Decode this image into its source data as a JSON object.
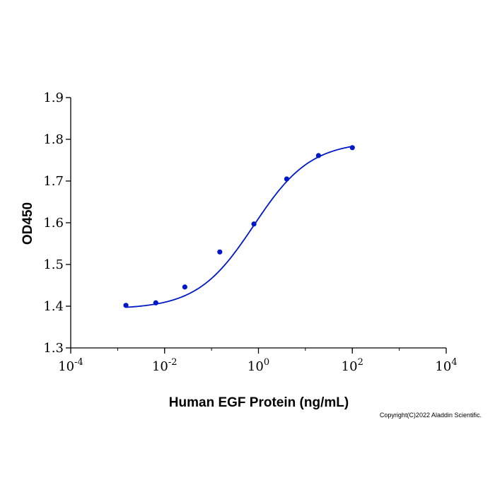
{
  "chart_data": {
    "type": "scatter",
    "title": "",
    "xlabel": "Human EGF Protein (ng/mL)",
    "ylabel": "OD450",
    "xscale": "log",
    "xlim": [
      0.0001,
      10000
    ],
    "ylim": [
      1.3,
      1.9
    ],
    "x_ticks": [
      {
        "base": "10",
        "exp": "-4",
        "value": 0.0001
      },
      {
        "base": "10",
        "exp": "-2",
        "value": 0.01
      },
      {
        "base": "10",
        "exp": "0",
        "value": 1
      },
      {
        "base": "10",
        "exp": "2",
        "value": 100
      },
      {
        "base": "10",
        "exp": "4",
        "value": 10000
      }
    ],
    "y_ticks": [
      "1.3",
      "1.4",
      "1.5",
      "1.6",
      "1.7",
      "1.8",
      "1.9"
    ],
    "grid": false,
    "series": [
      {
        "points": [
          {
            "x": 0.0015,
            "y": 1.402
          },
          {
            "x": 0.0065,
            "y": 1.408
          },
          {
            "x": 0.027,
            "y": 1.446
          },
          {
            "x": 0.15,
            "y": 1.53
          },
          {
            "x": 0.8,
            "y": 1.597
          },
          {
            "x": 4.0,
            "y": 1.705
          },
          {
            "x": 19.0,
            "y": 1.761
          },
          {
            "x": 100.0,
            "y": 1.78
          }
        ],
        "color": "#0018c8",
        "fit": {
          "model": "4PL",
          "bottom": 1.393,
          "top": 1.795,
          "ec50": 0.8,
          "hill": 0.72
        }
      }
    ],
    "copyright": "Copyright(C)2022 Aladdin Scientific."
  }
}
